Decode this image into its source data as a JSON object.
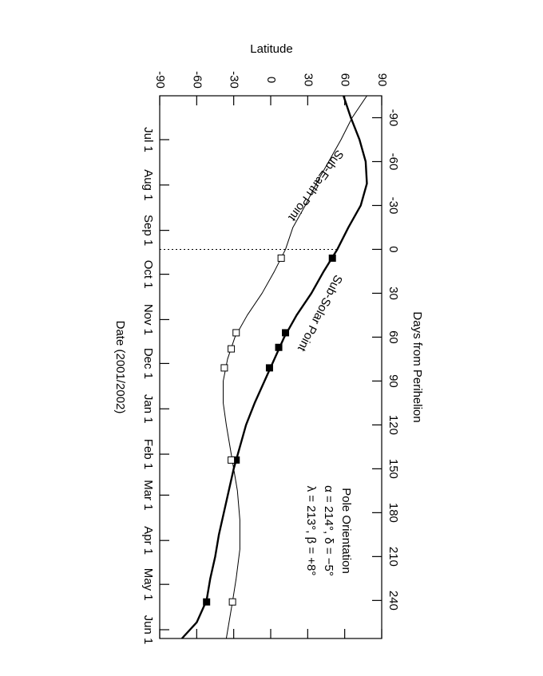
{
  "chart_data": {
    "type": "line",
    "y_axis_label": "Latitude",
    "x_axis_label": "Days from Perihelion",
    "x2_axis_label": "Date  (2001/2002)",
    "xlim": [
      -105,
      266
    ],
    "xticks": [
      -90,
      -60,
      -30,
      0,
      30,
      60,
      90,
      120,
      150,
      180,
      210,
      240
    ],
    "x2ticks": [
      {
        "value": -75,
        "label": "Jul 1"
      },
      {
        "value": -44,
        "label": "Aug 1"
      },
      {
        "value": -13,
        "label": "Sep 1"
      },
      {
        "value": 17,
        "label": "Oct 1"
      },
      {
        "value": 48,
        "label": "Nov 1"
      },
      {
        "value": 78,
        "label": "Dec 1"
      },
      {
        "value": 109,
        "label": "Jan 1"
      },
      {
        "value": 140,
        "label": "Feb 1"
      },
      {
        "value": 168,
        "label": "Mar 1"
      },
      {
        "value": 199,
        "label": "Apr 1"
      },
      {
        "value": 229,
        "label": "May 1"
      },
      {
        "value": 260,
        "label": "Jun 1"
      }
    ],
    "ylim": [
      -90,
      90
    ],
    "yticks": [
      -90,
      -60,
      -30,
      0,
      30,
      60,
      90
    ],
    "reference_line": 0,
    "series": [
      {
        "name": "Sub-Solar Point",
        "color": "#000000",
        "width": 2.4,
        "filled": true,
        "x": [
          -105,
          -90,
          -75,
          -60,
          -45,
          -30,
          -15,
          0,
          15,
          30,
          45,
          60,
          75,
          90,
          105,
          120,
          135,
          150,
          165,
          180,
          195,
          210,
          225,
          240,
          255,
          266
        ],
        "values": [
          59,
          65,
          72,
          77,
          78,
          73,
          63,
          54,
          43,
          33,
          21,
          11,
          3,
          -5,
          -13,
          -20,
          -25,
          -30,
          -34,
          -38,
          -42,
          -45,
          -49,
          -52,
          -60,
          -72
        ],
        "points_x": [
          6,
          57,
          67,
          81,
          144,
          241
        ],
        "points": [
          50,
          12,
          6.5,
          -1,
          -28,
          -52
        ]
      },
      {
        "name": "Sub-Earth Point",
        "color": "#000000",
        "width": 1,
        "filled": false,
        "x": [
          -105,
          -90,
          -75,
          -60,
          -45,
          -30,
          -15,
          0,
          15,
          30,
          45,
          60,
          75,
          90,
          105,
          120,
          135,
          150,
          165,
          185,
          205,
          225,
          241,
          266
        ],
        "values": [
          78,
          66,
          57,
          47,
          37,
          28,
          18,
          12,
          3,
          -7,
          -19,
          -29,
          -35,
          -38.5,
          -38.5,
          -36,
          -33,
          -30,
          -27,
          -25,
          -25,
          -28,
          -31,
          -36
        ],
        "points_x": [
          6,
          57,
          68,
          81,
          144,
          241
        ],
        "points": [
          8.5,
          -28,
          -32,
          -37.6,
          -32,
          -31
        ]
      }
    ],
    "annotations": [
      "Pole Orientation",
      "α = 214°, δ = −5°",
      "λ = 213°, β = +8°"
    ]
  }
}
